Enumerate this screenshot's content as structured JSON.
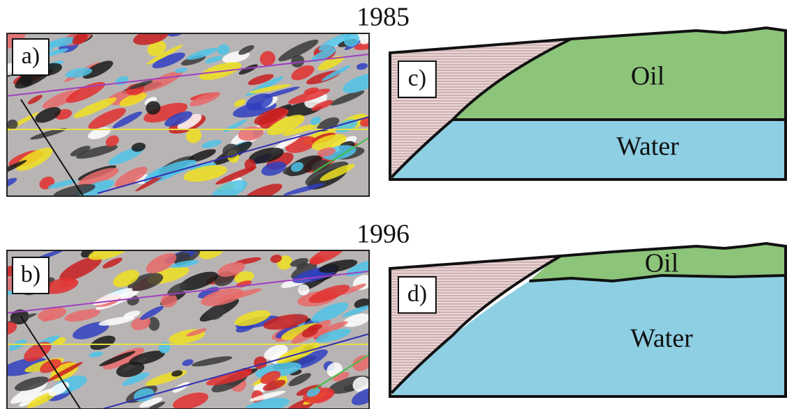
{
  "figure": {
    "panels": [
      {
        "year": "1985",
        "seismic_label": "a)",
        "model_label": "c)",
        "oil": "Oil",
        "water": "Water"
      },
      {
        "year": "1996",
        "seismic_label": "b)",
        "model_label": "d)",
        "oil": "Oil",
        "water": "Water"
      }
    ]
  }
}
